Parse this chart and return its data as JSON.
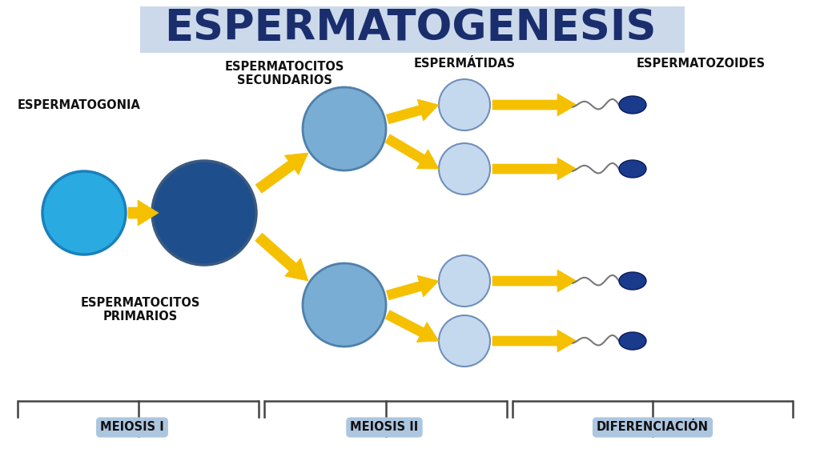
{
  "title": "ESPERMATOGENESIS",
  "title_color": "#1a2e6e",
  "title_bg": "#ccd9ea",
  "bg_color": "#ffffff",
  "labels": {
    "espermatogonia": "ESPERMATOGONIA",
    "espermatocitos_primarios": "ESPERMATOCITOS\nPRIMARIOS",
    "espermatocitos_secundarios": "ESPERMATOCITOS\nSECUNDARIOS",
    "espermatidas": "ESPERMÁTIDAS",
    "espermatozoides": "ESPERMATOZOIDES"
  },
  "stage_labels": {
    "meiosis1": "MEIOSIS I",
    "meiosis2": "MEIOSIS II",
    "diferenciacion": "DIFERENCIACIÓN"
  },
  "colors": {
    "cyan_cell": "#29abe2",
    "dark_blue_cell": "#1f4e8c",
    "medium_blue_cell": "#7aadd4",
    "light_blue_cell": "#c5d9ee",
    "sperm_head": "#1a3a8c",
    "arrow_yellow": "#f5c000",
    "stage_box_bg": "#adc6e0",
    "bracket_color": "#444444",
    "text_dark": "#111111"
  }
}
